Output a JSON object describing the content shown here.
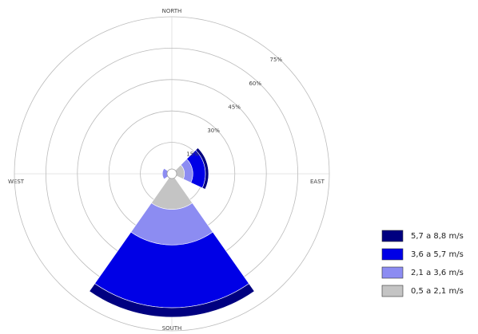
{
  "chart_data": {
    "type": "windrose",
    "axis_labels": {
      "north": "NORTH",
      "east": "EAST",
      "south": "SOUTH",
      "west": "WEST"
    },
    "x": [
      80,
      180,
      270
    ],
    "series": [
      {
        "name": "0,5 a 2,1 m/s",
        "color": "#c4c4c4",
        "values": [
          6,
          17,
          2
        ]
      },
      {
        "name": "2,1 a 3,6 m/s",
        "color": "#8c8cf2",
        "values": [
          4,
          17,
          2.5
        ]
      },
      {
        "name": "3,6 a 5,7 m/s",
        "color": "#0000e6",
        "values": [
          6,
          30,
          0
        ]
      },
      {
        "name": "5,7 a 8,8 m/s",
        "color": "#000080",
        "values": [
          1.5,
          4.5,
          0
        ]
      }
    ],
    "rlim": [
      0,
      75
    ],
    "rticks": [
      {
        "value": 15,
        "label": "15%"
      },
      {
        "value": 30,
        "label": "30%"
      },
      {
        "value": 45,
        "label": "45%"
      },
      {
        "value": 60,
        "label": "60%"
      },
      {
        "value": 75,
        "label": "75%"
      }
    ]
  }
}
